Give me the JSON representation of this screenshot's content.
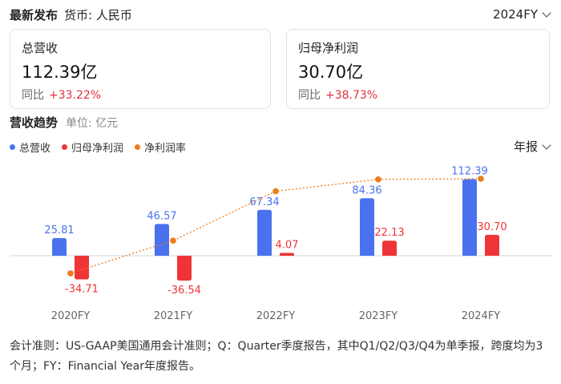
{
  "header": {
    "title": "最新发布",
    "currency": "货币: 人民币",
    "period": "2024FY"
  },
  "cards": [
    {
      "label": "总营收",
      "value": "112.39亿",
      "yoy_label": "同比",
      "yoy_value": "+33.22%"
    },
    {
      "label": "归母净利润",
      "value": "30.70亿",
      "yoy_label": "同比",
      "yoy_value": "+38.73%"
    }
  ],
  "section": {
    "title": "营收趋势",
    "unit": "单位: 亿元",
    "period_select": "年报"
  },
  "colors": {
    "revenue": "#4a72ef",
    "net_profit": "#ef3438",
    "margin": "#ef7a1a",
    "label_text": "#333333",
    "yoy_up": "#e0323b"
  },
  "chart_data": {
    "type": "bar",
    "categories": [
      "2020FY",
      "2021FY",
      "2022FY",
      "2023FY",
      "2024FY"
    ],
    "series": [
      {
        "name": "总营收",
        "type": "bar",
        "values": [
          25.81,
          46.57,
          67.34,
          84.36,
          112.39
        ],
        "labels": [
          "25.81",
          "46.57",
          "67.34",
          "84.36",
          "112.39"
        ]
      },
      {
        "name": "归母净利润",
        "type": "bar",
        "values": [
          -34.71,
          -36.54,
          4.07,
          22.13,
          30.7
        ],
        "labels": [
          "-34.71",
          "-36.54",
          "4.07",
          "22.13",
          "30.70"
        ]
      },
      {
        "name": "净利润率",
        "type": "line",
        "values": [
          -134.5,
          -78.5,
          6.0,
          26.2,
          27.3
        ]
      }
    ],
    "legend_position": "top-left",
    "grid": false
  },
  "footnote": "会计准则：US-GAAP美国通用会计准则；Q：Quarter季度报告，其中Q1/Q2/Q3/Q4为单季报，跨度均为3个月；FY：Financial Year年度报告。"
}
